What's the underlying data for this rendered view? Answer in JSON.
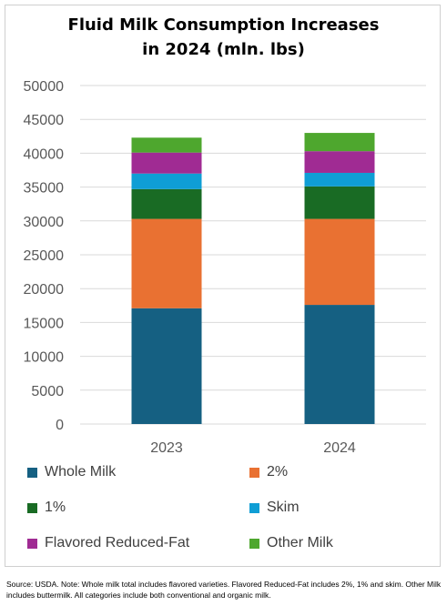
{
  "chart_data": {
    "type": "bar",
    "stacked": true,
    "title": "Fluid Milk Consumption Increases in 2024 (mln. lbs)",
    "title_lines": [
      "Fluid Milk Consumption Increases",
      "in 2024 (mln. lbs)"
    ],
    "xlabel": "",
    "ylabel": "",
    "categories": [
      "2023",
      "2024"
    ],
    "ylim": [
      0,
      50000
    ],
    "yticks": [
      "0",
      "5000",
      "10000",
      "15000",
      "20000",
      "25000",
      "30000",
      "35000",
      "40000",
      "45000",
      "50000"
    ],
    "grid": true,
    "legend_position": "bottom",
    "series": [
      {
        "name": "Whole Milk",
        "color": "#156082",
        "values": [
          17100,
          17600
        ]
      },
      {
        "name": "2%",
        "color": "#E97132",
        "values": [
          13200,
          12700
        ]
      },
      {
        "name": "1%",
        "color": "#196B24",
        "values": [
          4400,
          4800
        ]
      },
      {
        "name": "Skim",
        "color": "#0F9ED5",
        "values": [
          2300,
          2000
        ]
      },
      {
        "name": "Flavored Reduced-Fat",
        "color": "#A02B93",
        "values": [
          3100,
          3200
        ]
      },
      {
        "name": "Other Milk",
        "color": "#4EA72E",
        "values": [
          2200,
          2700
        ]
      }
    ]
  },
  "footnote": "Source: USDA. Note: Whole milk total includes flavored varieties. Flavored Reduced-Fat includes 2%, 1% and skim. Other Milk includes buttermilk. All categories include both conventional and organic milk."
}
